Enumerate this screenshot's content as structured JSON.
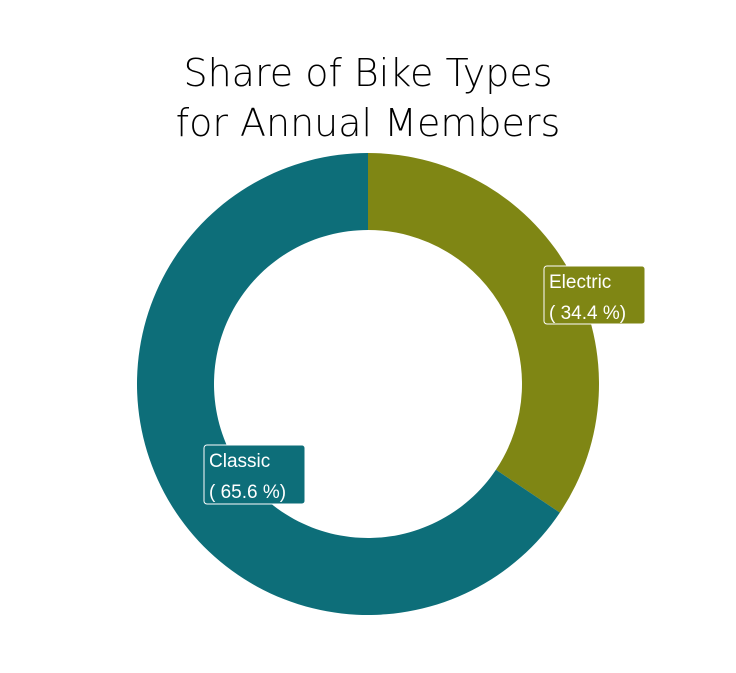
{
  "chart_data": {
    "type": "pie",
    "title": [
      "Share of Bike Types",
      "for Annual Members"
    ],
    "donut": true,
    "slices": [
      {
        "name": "Electric",
        "label": "( 34.4 %)",
        "value": 34.4,
        "color": "#7f8614"
      },
      {
        "name": "Classic",
        "label": "( 65.6 %)",
        "value": 65.6,
        "color": "#0d6e79"
      }
    ]
  }
}
